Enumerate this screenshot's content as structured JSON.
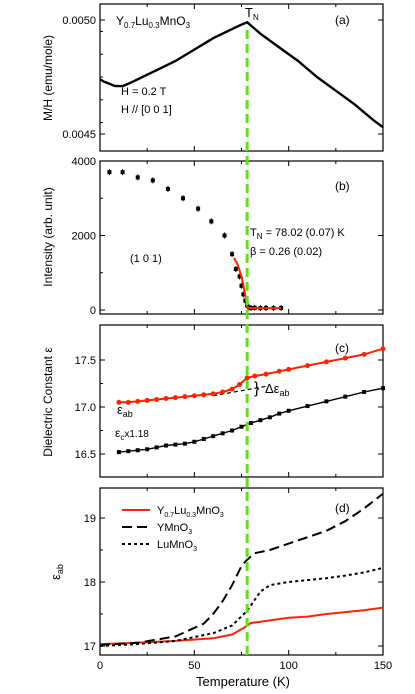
{
  "figure": {
    "xlabel": "Temperature (K)",
    "x_ticks": [
      "0",
      "50",
      "100",
      "150"
    ],
    "tn_marker": "T",
    "tn_marker_sub": "N",
    "tn_line_color": "#66dd22"
  },
  "chart_data": [
    {
      "id": "a",
      "type": "line",
      "panel_label": "(a)",
      "ylabel": "M/H (emu/mole)",
      "y_ticks": [
        "0.0050",
        "0.0045"
      ],
      "xlim": [
        0,
        150
      ],
      "ylim": [
        0.00443,
        0.00505
      ],
      "compound_parts": [
        "Y",
        "0.7",
        "Lu",
        "0.3",
        "MnO",
        "3"
      ],
      "annotations": [
        "H = 0.2 T",
        "H // [0 0 1]"
      ],
      "series": [
        {
          "color": "#000000",
          "x": [
            0,
            2,
            5,
            8,
            12,
            15,
            20,
            25,
            30,
            40,
            50,
            60,
            70,
            75,
            78,
            85,
            95,
            105,
            115,
            125,
            135,
            145,
            150
          ],
          "y": [
            0.00474,
            0.00473,
            0.00472,
            0.00471,
            0.00471,
            0.00472,
            0.00474,
            0.00476,
            0.00478,
            0.00482,
            0.00487,
            0.00492,
            0.00496,
            0.00498,
            0.00499,
            0.00494,
            0.00488,
            0.00482,
            0.00475,
            0.00469,
            0.00463,
            0.00456,
            0.00453
          ]
        }
      ]
    },
    {
      "id": "b",
      "type": "scatter",
      "panel_label": "(b)",
      "ylabel": "Intensity (arb. unit)",
      "y_ticks": [
        "4000",
        "2000",
        "0"
      ],
      "y_tick_values": [
        4000,
        2000,
        0
      ],
      "xlim": [
        0,
        150
      ],
      "ylim": [
        0,
        4000
      ],
      "reflection": "(1 0 1)",
      "fit_text_parts": [
        "T",
        "N",
        " = 78.02 (0.07) K"
      ],
      "fit_beta": "β = 0.26 (0.02)",
      "points": {
        "x": [
          5,
          12,
          20,
          28,
          36,
          44,
          52,
          59,
          66,
          70,
          72,
          74,
          75,
          76,
          77,
          78,
          79,
          80,
          82,
          85,
          88,
          92,
          96
        ],
        "y": [
          3700,
          3700,
          3560,
          3480,
          3250,
          3000,
          2720,
          2380,
          2000,
          1500,
          1100,
          900,
          650,
          420,
          250,
          120,
          70,
          55,
          60,
          50,
          55,
          50,
          55
        ]
      },
      "fit": {
        "color": "#ff2200",
        "x": [
          71,
          73,
          75,
          76,
          77,
          77.5,
          78,
          78.5,
          80,
          85,
          90,
          96
        ],
        "y": [
          1400,
          1220,
          900,
          660,
          400,
          260,
          100,
          60,
          55,
          52,
          52,
          52
        ]
      }
    },
    {
      "id": "c",
      "type": "line",
      "panel_label": "(c)",
      "ylabel": "Dielectric Constant ε",
      "y_ticks": [
        "17.5",
        "17.0",
        "16.5"
      ],
      "y_tick_values": [
        17.5,
        17.0,
        16.5
      ],
      "xlim": [
        0,
        150
      ],
      "ylim": [
        16.3,
        17.8
      ],
      "label_eab": [
        "ε",
        "ab"
      ],
      "label_ec": [
        "ε",
        "c",
        "x1.18"
      ],
      "delta_label": [
        "Δε",
        "ab"
      ],
      "series": [
        {
          "color": "#ff2200",
          "x": [
            10,
            15,
            20,
            25,
            30,
            35,
            40,
            45,
            50,
            55,
            60,
            65,
            70,
            74,
            78,
            82,
            88,
            95,
            100,
            110,
            120,
            130,
            140,
            150
          ],
          "y": [
            17.05,
            17.05,
            17.06,
            17.07,
            17.08,
            17.09,
            17.1,
            17.11,
            17.12,
            17.13,
            17.14,
            17.16,
            17.19,
            17.24,
            17.31,
            17.33,
            17.35,
            17.38,
            17.4,
            17.44,
            17.48,
            17.52,
            17.56,
            17.62
          ]
        },
        {
          "color": "#000000",
          "x": [
            10,
            15,
            20,
            25,
            30,
            35,
            40,
            45,
            50,
            55,
            60,
            65,
            70,
            75,
            80,
            85,
            90,
            95,
            100,
            110,
            120,
            130,
            140,
            150
          ],
          "y": [
            16.52,
            16.53,
            16.54,
            16.55,
            16.57,
            16.59,
            16.6,
            16.61,
            16.63,
            16.66,
            16.69,
            16.72,
            16.75,
            16.79,
            16.83,
            16.86,
            16.89,
            16.93,
            16.96,
            17.01,
            17.06,
            17.11,
            17.16,
            17.2
          ]
        }
      ],
      "extrapolation": {
        "x": [
          60,
          88
        ],
        "y": [
          17.12,
          17.22
        ]
      }
    },
    {
      "id": "d",
      "type": "line",
      "panel_label": "(d)",
      "ylabel_parts": [
        "ε",
        "ab"
      ],
      "y_ticks": [
        "19",
        "18",
        "17"
      ],
      "y_tick_values": [
        19,
        18,
        17
      ],
      "xlim": [
        0,
        150
      ],
      "ylim": [
        16.8,
        19.5
      ],
      "legend_placement": "top-left",
      "series": [
        {
          "name_parts": [
            "Y",
            "0.7",
            "Lu",
            "0.3",
            "MnO",
            "3"
          ],
          "color": "#ff2200",
          "dash": "solid",
          "x": [
            0,
            20,
            40,
            60,
            70,
            76,
            80,
            85,
            90,
            100,
            110,
            120,
            130,
            140,
            150
          ],
          "y": [
            17.03,
            17.05,
            17.08,
            17.12,
            17.18,
            17.28,
            17.36,
            17.38,
            17.4,
            17.44,
            17.46,
            17.5,
            17.53,
            17.56,
            17.6
          ]
        },
        {
          "name_parts": [
            "YMnO",
            "3"
          ],
          "color": "#000000",
          "dash": "dashed",
          "x": [
            0,
            20,
            40,
            55,
            60,
            65,
            70,
            75,
            78,
            82,
            90,
            100,
            110,
            120,
            130,
            140,
            150
          ],
          "y": [
            17.02,
            17.05,
            17.15,
            17.35,
            17.5,
            17.7,
            17.95,
            18.25,
            18.35,
            18.45,
            18.5,
            18.6,
            18.7,
            18.8,
            18.95,
            19.15,
            19.38
          ]
        },
        {
          "name_parts": [
            "LuMnO",
            "3"
          ],
          "color": "#000000",
          "dash": "dotted",
          "x": [
            0,
            20,
            40,
            60,
            70,
            78,
            85,
            90,
            100,
            110,
            120,
            130,
            140,
            150
          ],
          "y": [
            17.0,
            17.03,
            17.08,
            17.2,
            17.32,
            17.55,
            17.85,
            17.95,
            18.0,
            18.03,
            18.06,
            18.1,
            18.15,
            18.22
          ]
        }
      ]
    }
  ]
}
